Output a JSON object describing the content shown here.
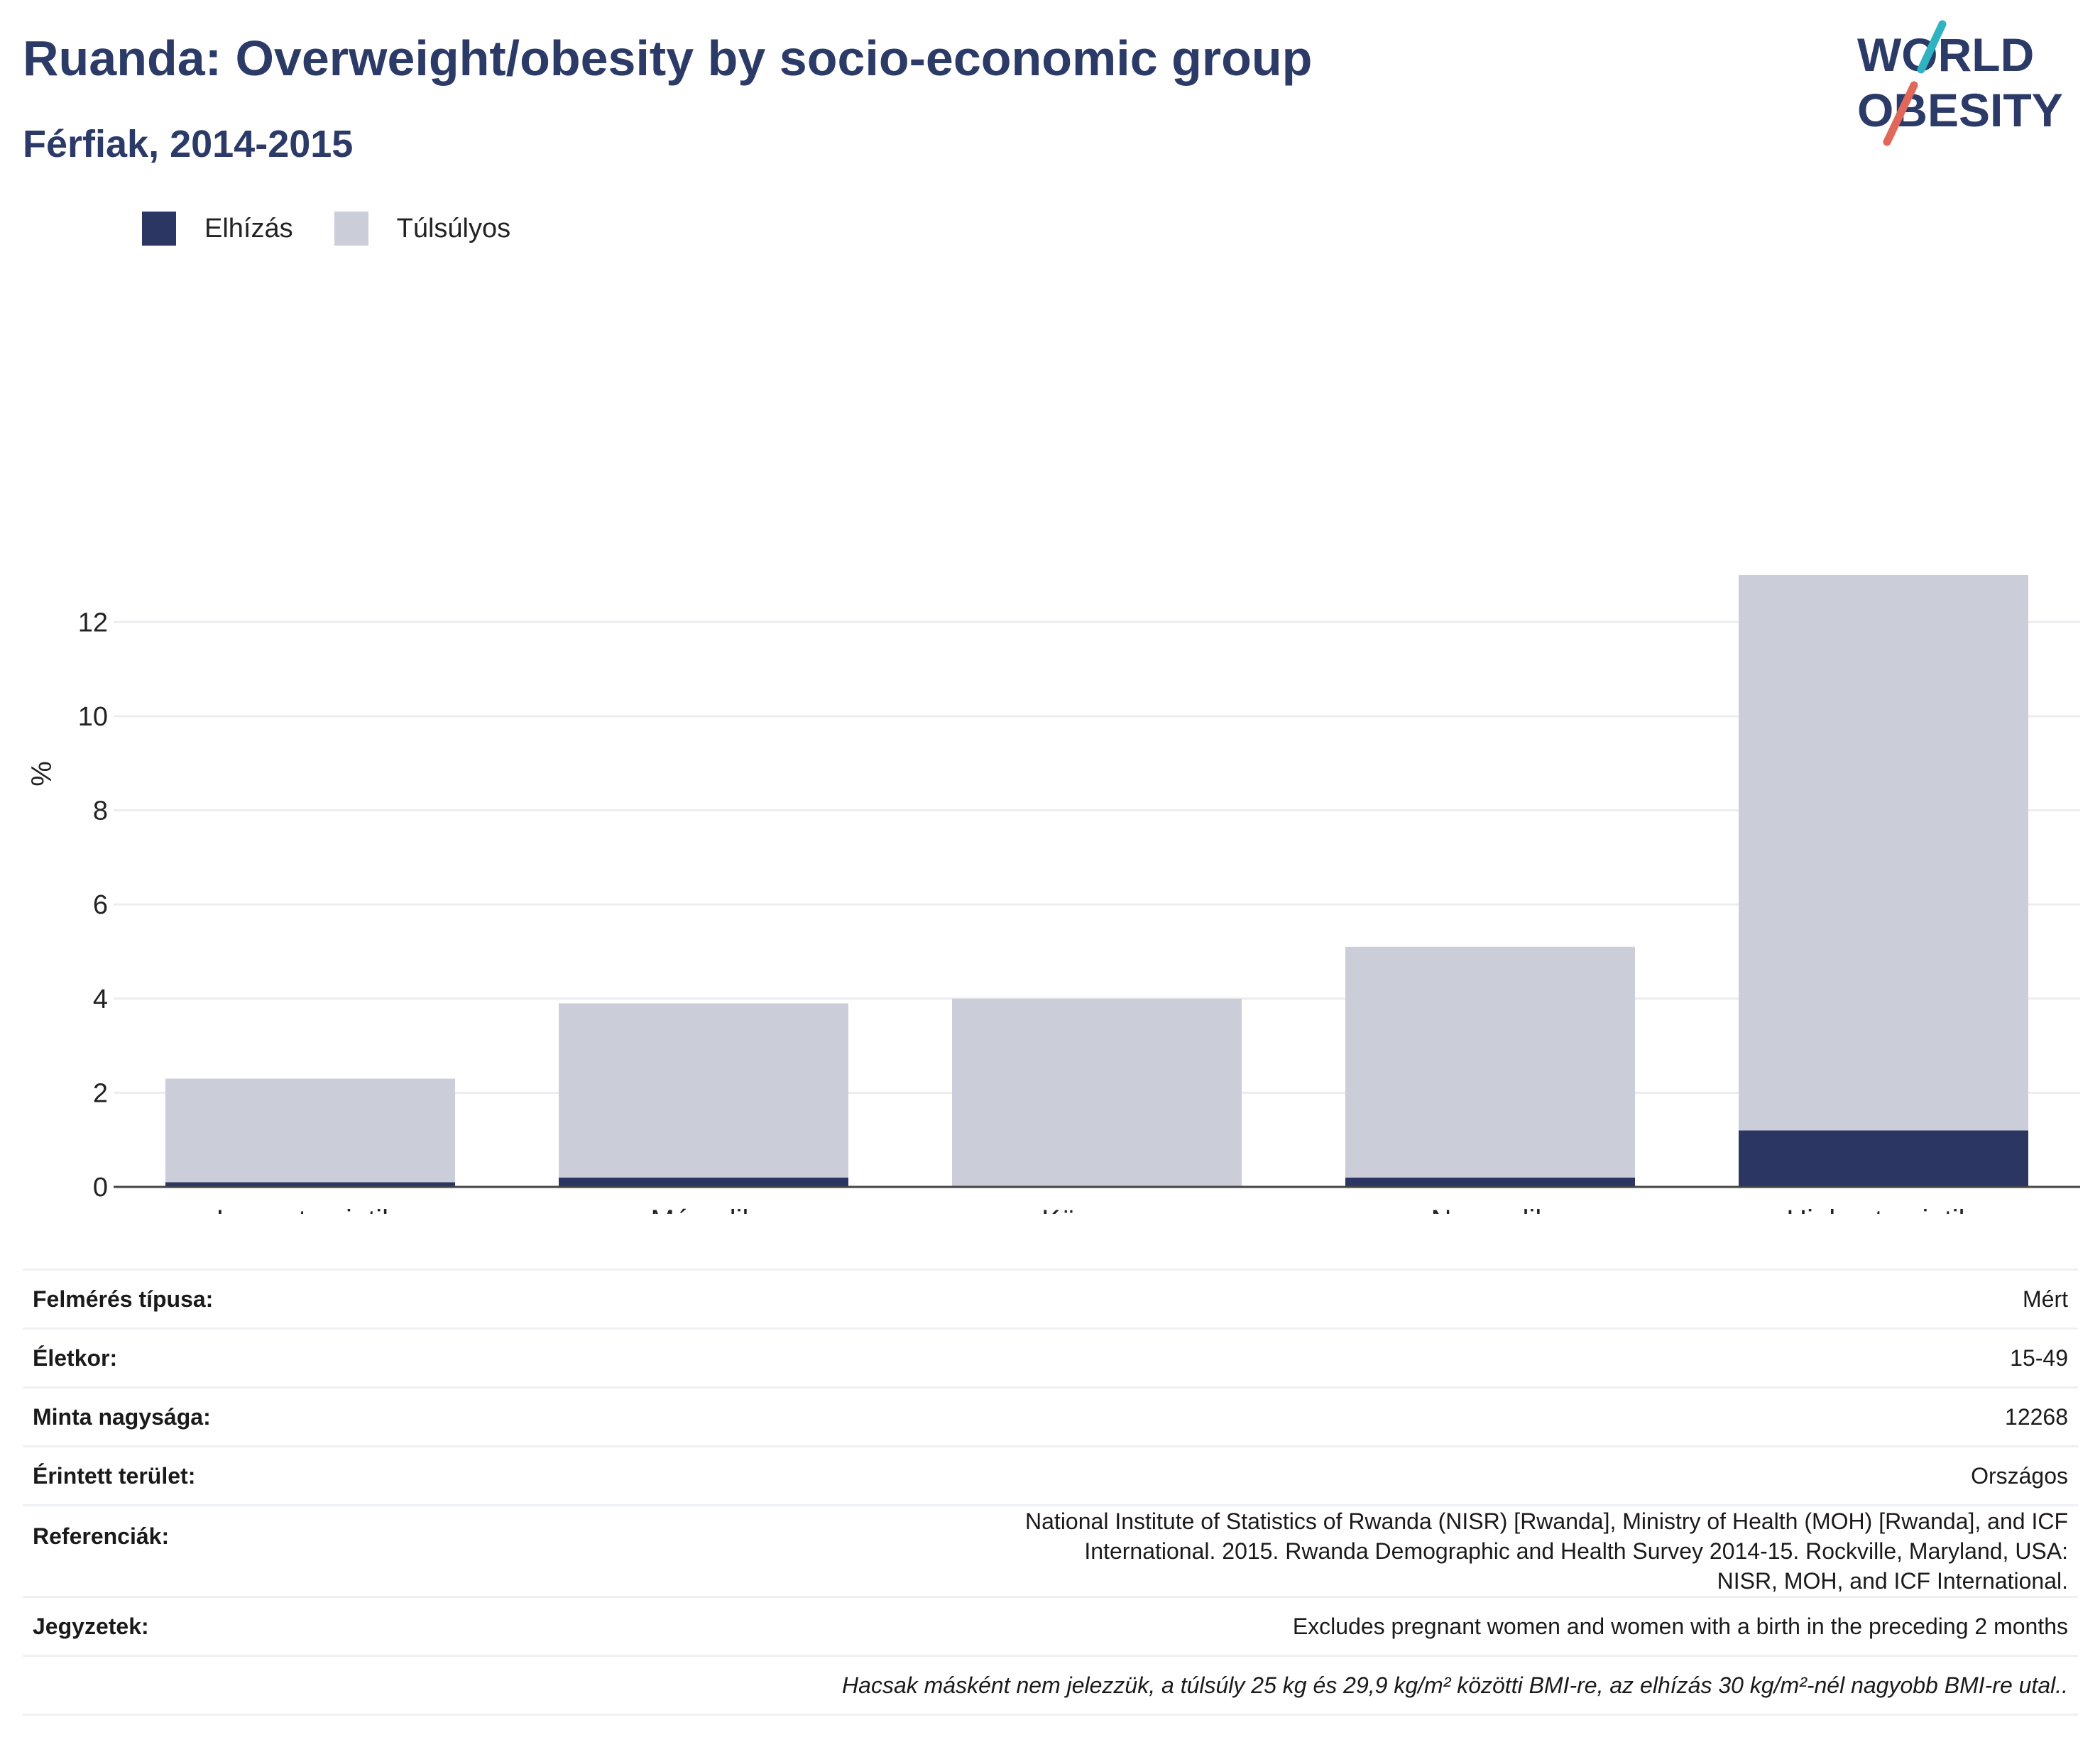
{
  "title": "Ruanda: Overweight/obesity by socio-economic group",
  "subtitle": "Férfiak, 2014-2015",
  "logo": {
    "line1": "WORLD",
    "line2": "OBESITY",
    "accent_colors": [
      "#2fb3c0",
      "#e0675a"
    ]
  },
  "legend": [
    {
      "label": "Elhízás",
      "color": "#2b3663"
    },
    {
      "label": "Túlsúlyos",
      "color": "#cbcdd8"
    }
  ],
  "chart_data": {
    "type": "bar",
    "stacked": true,
    "categories": [
      "Lowest quintile",
      "Második",
      "Közepes",
      "Negyedik",
      "Highest quintile"
    ],
    "series": [
      {
        "name": "Elhízás",
        "color": "#2b3663",
        "values": [
          0.1,
          0.2,
          0.0,
          0.2,
          1.2
        ]
      },
      {
        "name": "Túlsúlyos",
        "color": "#cbcdd8",
        "values": [
          2.2,
          3.7,
          4.0,
          4.9,
          11.8
        ]
      }
    ],
    "ylabel": "%",
    "ylim": [
      0,
      13
    ],
    "yticks": [
      0,
      2,
      4,
      6,
      8,
      10,
      12
    ],
    "grid": true
  },
  "meta": {
    "rows": [
      {
        "key": "Felmérés típusa:",
        "value": "Mért"
      },
      {
        "key": "Életkor:",
        "value": "15-49"
      },
      {
        "key": "Minta nagysága:",
        "value": "12268"
      },
      {
        "key": "Érintett terület:",
        "value": "Országos"
      },
      {
        "key": "Referenciák:",
        "value": "National Institute of Statistics of Rwanda (NISR) [Rwanda], Ministry of Health (MOH) [Rwanda], and ICF International. 2015. Rwanda Demographic and Health Survey 2014-15. Rockville, Maryland, USA: NISR, MOH, and ICF International."
      },
      {
        "key": "Jegyzetek:",
        "value": "Excludes pregnant women and women with a birth in the preceding 2 months"
      }
    ],
    "footnote": "Hacsak másként nem jelezzük, a túlsúly 25 kg és 29,9 kg/m² közötti BMI-re, az elhízás 30 kg/m²-nél nagyobb BMI-re utal.."
  }
}
